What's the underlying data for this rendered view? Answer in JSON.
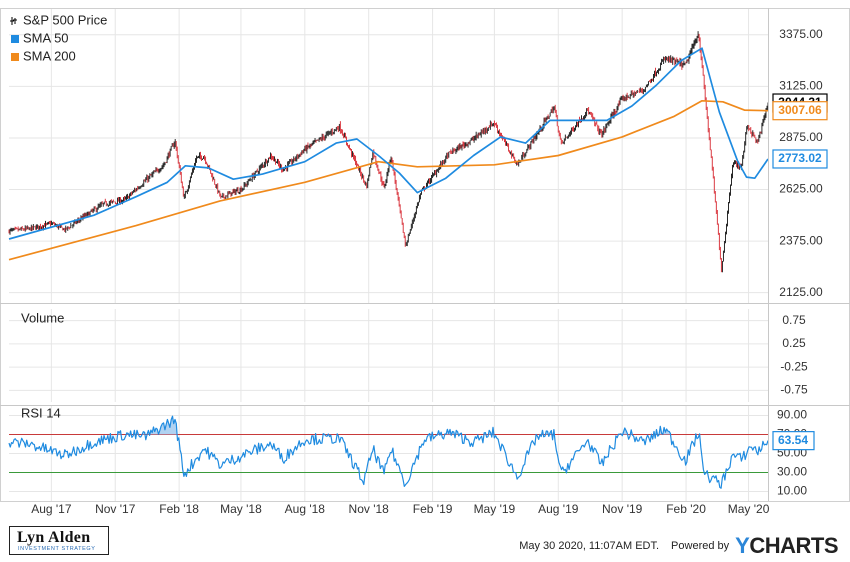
{
  "chart_data": [
    {
      "type": "line",
      "panel": "price",
      "legend": [
        {
          "name": "S&P 500 Price",
          "color": "#000000",
          "style": "candlestick"
        },
        {
          "name": "SMA 50",
          "color": "#1f8be0"
        },
        {
          "name": "SMA 200",
          "color": "#f08a1c"
        }
      ],
      "x_ticks": [
        "Aug '17",
        "Nov '17",
        "Feb '18",
        "May '18",
        "Aug '18",
        "Nov '18",
        "Feb '19",
        "May '19",
        "Aug '19",
        "Nov '19",
        "Feb '20",
        "May '20"
      ],
      "y_ticks": [
        "3375.00",
        "3125.00",
        "2875.00",
        "2625.00",
        "2375.00",
        "2125.00"
      ],
      "ylim": [
        2075,
        3500
      ],
      "price_path": [
        [
          "2017-06-01",
          2425
        ],
        [
          "2017-07-01",
          2435
        ],
        [
          "2017-08-01",
          2460
        ],
        [
          "2017-08-21",
          2430
        ],
        [
          "2017-09-15",
          2490
        ],
        [
          "2017-10-15",
          2555
        ],
        [
          "2017-11-15",
          2575
        ],
        [
          "2017-12-15",
          2670
        ],
        [
          "2018-01-10",
          2745
        ],
        [
          "2018-01-26",
          2860
        ],
        [
          "2018-02-08",
          2580
        ],
        [
          "2018-02-26",
          2780
        ],
        [
          "2018-03-09",
          2785
        ],
        [
          "2018-04-02",
          2585
        ],
        [
          "2018-05-03",
          2630
        ],
        [
          "2018-06-13",
          2790
        ],
        [
          "2018-07-01",
          2720
        ],
        [
          "2018-08-01",
          2820
        ],
        [
          "2018-09-20",
          2930
        ],
        [
          "2018-10-29",
          2640
        ],
        [
          "2018-11-07",
          2810
        ],
        [
          "2018-11-23",
          2630
        ],
        [
          "2018-12-03",
          2790
        ],
        [
          "2018-12-24",
          2350
        ],
        [
          "2019-01-15",
          2610
        ],
        [
          "2019-02-25",
          2800
        ],
        [
          "2019-04-01",
          2870
        ],
        [
          "2019-04-30",
          2950
        ],
        [
          "2019-06-03",
          2745
        ],
        [
          "2019-07-26",
          3025
        ],
        [
          "2019-08-05",
          2845
        ],
        [
          "2019-09-12",
          3010
        ],
        [
          "2019-10-02",
          2890
        ],
        [
          "2019-11-01",
          3065
        ],
        [
          "2019-12-02",
          3110
        ],
        [
          "2020-01-02",
          3260
        ],
        [
          "2020-01-31",
          3225
        ],
        [
          "2020-02-19",
          3385
        ],
        [
          "2020-03-09",
          2750
        ],
        [
          "2020-03-23",
          2235
        ],
        [
          "2020-04-08",
          2750
        ],
        [
          "2020-04-21",
          2740
        ],
        [
          "2020-04-29",
          2940
        ],
        [
          "2020-05-14",
          2850
        ],
        [
          "2020-05-29",
          3044
        ]
      ],
      "sma50_path": [
        [
          "2017-06-01",
          2385
        ],
        [
          "2017-10-01",
          2500
        ],
        [
          "2017-12-01",
          2590
        ],
        [
          "2018-01-15",
          2660
        ],
        [
          "2018-02-10",
          2740
        ],
        [
          "2018-03-15",
          2730
        ],
        [
          "2018-04-20",
          2675
        ],
        [
          "2018-06-01",
          2700
        ],
        [
          "2018-08-01",
          2760
        ],
        [
          "2018-09-15",
          2850
        ],
        [
          "2018-10-15",
          2870
        ],
        [
          "2018-11-15",
          2790
        ],
        [
          "2018-12-15",
          2705
        ],
        [
          "2019-01-10",
          2610
        ],
        [
          "2019-02-20",
          2680
        ],
        [
          "2019-04-01",
          2790
        ],
        [
          "2019-05-10",
          2880
        ],
        [
          "2019-06-15",
          2850
        ],
        [
          "2019-07-20",
          2960
        ],
        [
          "2019-08-25",
          2960
        ],
        [
          "2019-10-10",
          2960
        ],
        [
          "2019-11-15",
          3030
        ],
        [
          "2019-12-20",
          3130
        ],
        [
          "2020-01-25",
          3250
        ],
        [
          "2020-02-24",
          3310
        ],
        [
          "2020-03-20",
          3000
        ],
        [
          "2020-04-15",
          2765
        ],
        [
          "2020-04-28",
          2685
        ],
        [
          "2020-05-10",
          2680
        ],
        [
          "2020-05-29",
          2773
        ]
      ],
      "sma200_path": [
        [
          "2017-06-01",
          2285
        ],
        [
          "2017-12-01",
          2450
        ],
        [
          "2018-04-01",
          2570
        ],
        [
          "2018-08-01",
          2660
        ],
        [
          "2018-11-15",
          2760
        ],
        [
          "2019-01-10",
          2735
        ],
        [
          "2019-05-01",
          2745
        ],
        [
          "2019-08-01",
          2790
        ],
        [
          "2019-11-01",
          2880
        ],
        [
          "2020-01-15",
          2980
        ],
        [
          "2020-02-24",
          3055
        ],
        [
          "2020-03-25",
          3050
        ],
        [
          "2020-04-25",
          3010
        ],
        [
          "2020-05-29",
          3007
        ]
      ],
      "value_labels": [
        {
          "text": "3044.31",
          "color": "#000000"
        },
        {
          "text": "3007.06",
          "color": "#f08a1c"
        },
        {
          "text": "2773.02",
          "color": "#1f8be0"
        }
      ]
    },
    {
      "type": "bar",
      "panel": "volume",
      "legend": [
        {
          "name": "Volume"
        }
      ],
      "y_ticks": [
        "0.75",
        "0.25",
        "-0.25",
        "-0.75"
      ],
      "ylim": [
        -1,
        1
      ]
    },
    {
      "type": "line",
      "panel": "rsi",
      "legend": [
        {
          "name": "RSI 14",
          "color": "#1f8be0"
        }
      ],
      "y_ticks": [
        "90.00",
        "70.00",
        "50.00",
        "30.00",
        "10.00"
      ],
      "ylim": [
        0,
        100
      ],
      "overbought_level": 70,
      "oversold_level": 30,
      "rsi_path": [
        [
          "2017-06-01",
          62
        ],
        [
          "2017-07-01",
          60
        ],
        [
          "2017-08-20",
          48
        ],
        [
          "2017-10-01",
          62
        ],
        [
          "2017-11-15",
          70
        ],
        [
          "2017-12-15",
          68
        ],
        [
          "2018-01-26",
          86
        ],
        [
          "2018-02-08",
          28
        ],
        [
          "2018-03-09",
          55
        ],
        [
          "2018-04-02",
          38
        ],
        [
          "2018-05-15",
          52
        ],
        [
          "2018-06-13",
          60
        ],
        [
          "2018-07-01",
          45
        ],
        [
          "2018-08-01",
          65
        ],
        [
          "2018-09-20",
          66
        ],
        [
          "2018-10-25",
          20
        ],
        [
          "2018-11-07",
          55
        ],
        [
          "2018-11-23",
          28
        ],
        [
          "2018-12-03",
          55
        ],
        [
          "2018-12-24",
          18
        ],
        [
          "2019-01-20",
          65
        ],
        [
          "2019-02-25",
          72
        ],
        [
          "2019-04-01",
          62
        ],
        [
          "2019-04-30",
          72
        ],
        [
          "2019-06-03",
          25
        ],
        [
          "2019-07-01",
          68
        ],
        [
          "2019-07-26",
          70
        ],
        [
          "2019-08-05",
          28
        ],
        [
          "2019-09-12",
          64
        ],
        [
          "2019-10-02",
          38
        ],
        [
          "2019-11-01",
          74
        ],
        [
          "2019-12-02",
          62
        ],
        [
          "2020-01-02",
          76
        ],
        [
          "2020-01-31",
          42
        ],
        [
          "2020-02-19",
          72
        ],
        [
          "2020-02-28",
          28
        ],
        [
          "2020-03-23",
          18
        ],
        [
          "2020-04-08",
          48
        ],
        [
          "2020-04-21",
          44
        ],
        [
          "2020-05-05",
          58
        ],
        [
          "2020-05-14",
          52
        ],
        [
          "2020-05-29",
          63.54
        ]
      ],
      "value_labels": [
        {
          "text": "63.54",
          "color": "#1f8be0"
        }
      ]
    }
  ],
  "footer": {
    "brand_name": "Lyn Alden",
    "brand_tagline": "INVESTMENT STRATEGY",
    "timestamp": "May 30 2020, 11:07AM EDT.",
    "powered_by": "Powered by",
    "ycharts_y": "Y",
    "ycharts_rest": "CHARTS"
  }
}
